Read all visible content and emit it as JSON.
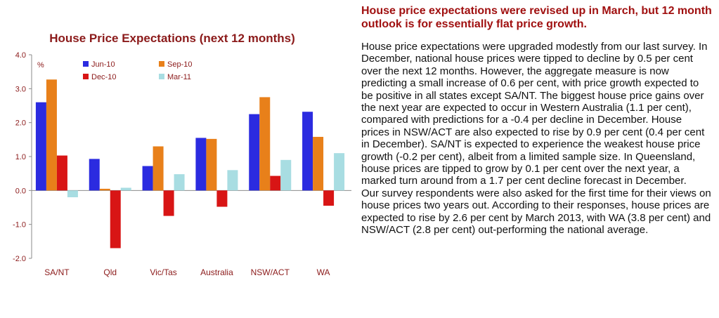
{
  "chart_data": {
    "type": "bar",
    "title": "House Price Expectations (next 12 months)",
    "ylabel": "%",
    "ylim": [
      -2.0,
      4.0
    ],
    "yticks": [
      "4.0",
      "3.0",
      "2.0",
      "1.0",
      "0.0",
      "-1.0",
      "-2.0"
    ],
    "categories": [
      "SA/NT",
      "Qld",
      "Vic/Tas",
      "Australia",
      "NSW/ACT",
      "WA"
    ],
    "series": [
      {
        "name": "Jun-10",
        "color": "#2b2be0",
        "values": [
          2.6,
          0.93,
          0.72,
          1.55,
          2.25,
          2.32
        ]
      },
      {
        "name": "Sep-10",
        "color": "#e8801a",
        "values": [
          3.27,
          0.05,
          1.3,
          1.52,
          2.75,
          1.58
        ]
      },
      {
        "name": "Dec-10",
        "color": "#d81515",
        "values": [
          1.03,
          -1.7,
          -0.75,
          -0.48,
          0.43,
          -0.45
        ]
      },
      {
        "name": "Mar-11",
        "color": "#a8dde2",
        "values": [
          -0.2,
          0.08,
          0.48,
          0.6,
          0.9,
          1.1
        ]
      }
    ],
    "grid": false,
    "legend": "top"
  },
  "text": {
    "headline": "House price expectations were revised up in March, but 12 month outlook is for essentially flat price growth.",
    "paragraphs": [
      "House price expectations were upgraded modestly from our last survey. In December, national house prices were tipped to decline by 0.5 per cent over the next 12 months. However, the aggregate measure is now predicting a small increase of 0.6 per cent, with price growth expected to be positive in all states except SA/NT. The biggest house price gains over the next year are expected to occur in Western Australia (1.1 per cent), compared with predictions for a -0.4 per decline in December. House prices in NSW/ACT are also expected to rise by 0.9 per cent (0.4 per cent in December). SA/NT is expected to experience the weakest house price growth (-0.2 per cent), albeit from a limited sample size. In Queensland, house prices are tipped to grow by 0.1 per cent over the next year, a marked turn around from a 1.7 per cent decline forecast in December.",
      "Our survey respondents were also asked for the first time for their views on house prices two years out. According to their responses, house prices are expected to rise by 2.6 per cent by March 2013, with WA (3.8 per cent) and NSW/ACT (2.8 per cent) out-performing the national average."
    ]
  }
}
